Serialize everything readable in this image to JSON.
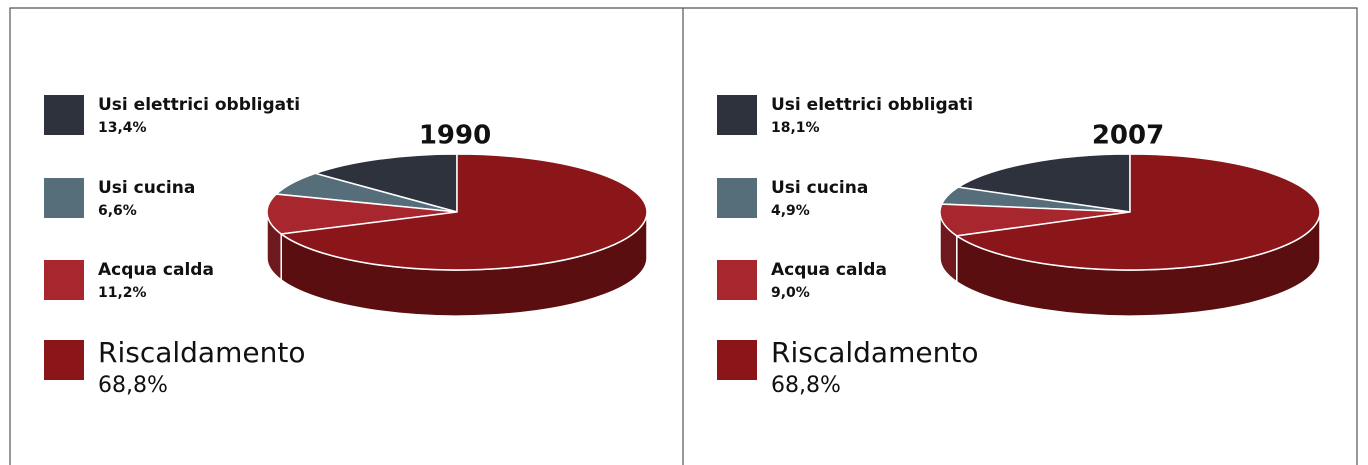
{
  "chart_data": [
    {
      "type": "pie",
      "title": "1990",
      "categories": [
        "Usi elettrici obbligati",
        "Usi cucina",
        "Acqua calda",
        "Riscaldamento"
      ],
      "values": [
        13.4,
        6.6,
        11.2,
        68.8
      ],
      "value_labels": [
        "13,4%",
        "6,6%",
        "11,2%",
        "68,8%"
      ],
      "colors": [
        "#2d323d",
        "#566e7a",
        "#a8262e",
        "#8a1619"
      ]
    },
    {
      "type": "pie",
      "title": "2007",
      "categories": [
        "Usi elettrici obbligati",
        "Usi cucina",
        "Acqua calda",
        "Riscaldamento"
      ],
      "values": [
        18.1,
        4.9,
        9.0,
        68.8
      ],
      "value_labels": [
        "18,1%",
        "4,9%",
        "9,0%",
        "68,8%"
      ],
      "colors": [
        "#2d323d",
        "#566e7a",
        "#a8262e",
        "#8a1619"
      ]
    }
  ]
}
